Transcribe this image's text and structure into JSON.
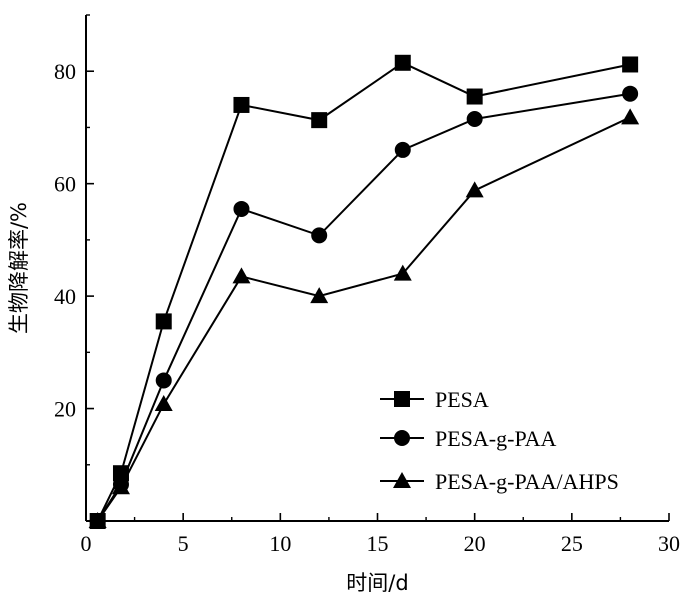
{
  "chart_data": {
    "type": "line",
    "title": "",
    "xlabel": "时间/d",
    "ylabel": "生物降解率/%",
    "xlim": [
      0,
      30
    ],
    "ylim": [
      0,
      90
    ],
    "xticks": [
      "0",
      "5",
      "10",
      "15",
      "20",
      "25",
      "30"
    ],
    "yticks": [
      "20",
      "40",
      "60",
      "80"
    ],
    "grid": false,
    "legend_position": "bottom-right",
    "series": [
      {
        "name": "PESA",
        "marker": "square",
        "x": [
          0.6,
          1.8,
          4.0,
          8.0,
          12.0,
          16.3,
          20.0,
          28.0
        ],
        "y": [
          0,
          8.5,
          35.5,
          74.0,
          71.3,
          81.5,
          75.5,
          81.2
        ]
      },
      {
        "name": "PESA-g-PAA",
        "marker": "circle",
        "x": [
          0.6,
          1.8,
          4.0,
          8.0,
          12.0,
          16.3,
          20.0,
          28.0
        ],
        "y": [
          0,
          6.5,
          25.0,
          55.5,
          50.8,
          66.0,
          71.5,
          76.0
        ]
      },
      {
        "name": "PESA-g-PAA/AHPS",
        "marker": "triangle",
        "x": [
          0.6,
          1.8,
          4.0,
          8.0,
          12.0,
          16.3,
          20.0,
          28.0
        ],
        "y": [
          0,
          6.0,
          20.8,
          43.5,
          40.0,
          44.0,
          58.8,
          71.8
        ]
      }
    ]
  }
}
